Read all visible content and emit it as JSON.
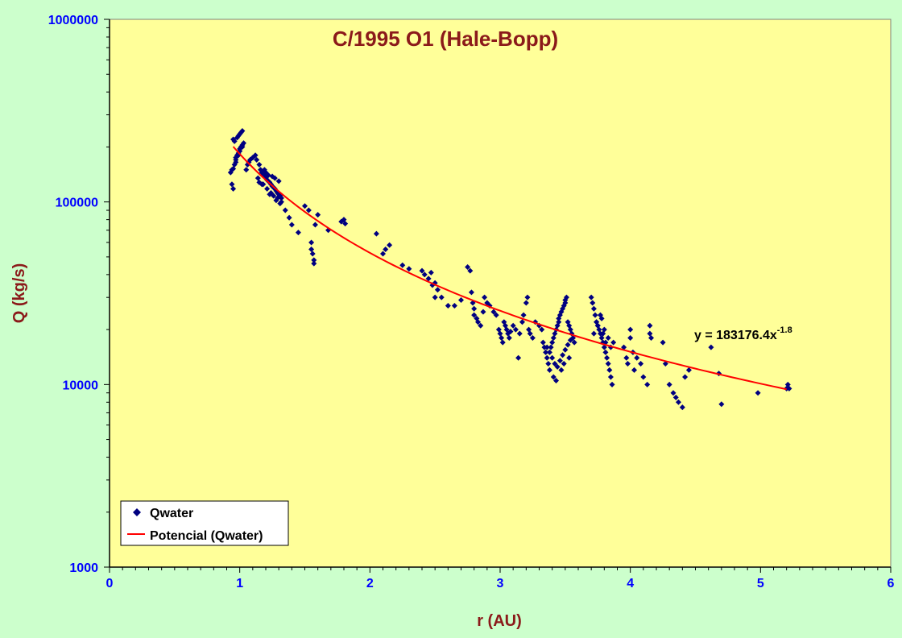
{
  "colors": {
    "page_bg": "#ccffcc",
    "plot_bg": "#ffff99",
    "title": "#8b1a1a",
    "tick_labels": "#0000ff",
    "points": "#000080",
    "trend": "#ff0000"
  },
  "chart_data": {
    "type": "scatter",
    "title": "C/1995 O1 (Hale-Bopp)",
    "xlabel": "r (AU)",
    "ylabel": "Q (kg/s)",
    "xlim": [
      0,
      6
    ],
    "ylim": [
      1000,
      1000000
    ],
    "yscale": "log",
    "x_ticks": [
      "0",
      "1",
      "2",
      "3",
      "4",
      "5",
      "6"
    ],
    "y_ticks": [
      "1000",
      "10000",
      "100000",
      "1000000"
    ],
    "grid": false,
    "legend_position": "bottom-left",
    "legend": [
      "Qwater",
      "Potencial (Qwater)"
    ],
    "trendline": {
      "equation_prefix": "y = 183176.4x",
      "equation_exponent": "-1.8",
      "coefficient": 183176.4,
      "exponent": -1.8,
      "x_range": [
        0.95,
        5.2
      ]
    },
    "series": [
      {
        "name": "Qwater",
        "x": [
          0.93,
          0.94,
          0.95,
          0.96,
          0.97,
          0.97,
          0.98,
          0.99,
          1.0,
          1.0,
          1.01,
          1.02,
          1.03,
          0.95,
          0.96,
          0.98,
          0.99,
          1.0,
          1.01,
          1.02,
          0.94,
          0.95,
          0.97,
          0.99,
          1.0,
          1.02,
          1.05,
          1.06,
          1.07,
          1.08,
          1.1,
          1.12,
          1.13,
          1.15,
          1.16,
          1.17,
          1.18,
          1.19,
          1.2,
          1.21,
          1.22,
          1.23,
          1.24,
          1.25,
          1.26,
          1.27,
          1.28,
          1.29,
          1.3,
          1.31,
          1.32,
          1.19,
          1.2,
          1.22,
          1.25,
          1.27,
          1.3,
          1.15,
          1.18,
          1.21,
          1.24,
          1.26,
          1.29,
          1.32,
          1.14,
          1.17,
          1.23,
          1.28,
          1.31,
          1.35,
          1.38,
          1.4,
          1.45,
          1.5,
          1.53,
          1.55,
          1.55,
          1.56,
          1.57,
          1.57,
          1.58,
          1.6,
          1.68,
          1.78,
          1.8,
          1.81,
          2.05,
          2.1,
          2.12,
          2.15,
          2.25,
          2.3,
          2.4,
          2.42,
          2.45,
          2.47,
          2.48,
          2.5,
          2.5,
          2.52,
          2.55,
          2.6,
          2.65,
          2.7,
          2.75,
          2.77,
          2.78,
          2.79,
          2.8,
          2.8,
          2.82,
          2.83,
          2.85,
          2.87,
          2.88,
          2.9,
          2.92,
          2.95,
          2.97,
          2.99,
          3.0,
          3.01,
          3.02,
          3.03,
          3.04,
          3.05,
          3.06,
          3.07,
          3.08,
          3.1,
          3.12,
          3.14,
          3.15,
          3.17,
          3.18,
          3.2,
          3.21,
          3.22,
          3.23,
          3.25,
          3.27,
          3.3,
          3.32,
          3.33,
          3.34,
          3.35,
          3.36,
          3.37,
          3.38,
          3.39,
          3.4,
          3.41,
          3.42,
          3.43,
          3.44,
          3.45,
          3.45,
          3.46,
          3.47,
          3.48,
          3.49,
          3.5,
          3.5,
          3.51,
          3.52,
          3.53,
          3.54,
          3.55,
          3.56,
          3.57,
          3.36,
          3.38,
          3.4,
          3.42,
          3.44,
          3.46,
          3.48,
          3.5,
          3.52,
          3.54,
          3.41,
          3.43,
          3.47,
          3.49,
          3.53,
          3.7,
          3.71,
          3.72,
          3.73,
          3.74,
          3.75,
          3.76,
          3.77,
          3.78,
          3.79,
          3.8,
          3.81,
          3.82,
          3.83,
          3.84,
          3.85,
          3.86,
          3.87,
          3.72,
          3.75,
          3.78,
          3.8,
          3.83,
          3.85,
          3.74,
          3.77,
          3.79,
          3.81,
          3.95,
          3.97,
          3.98,
          4.0,
          4.0,
          4.02,
          4.03,
          4.05,
          4.08,
          4.1,
          4.13,
          4.15,
          4.15,
          4.16,
          4.25,
          4.27,
          4.3,
          4.33,
          4.35,
          4.37,
          4.4,
          4.42,
          4.45,
          4.62,
          4.68,
          4.7,
          4.98,
          5.2,
          5.21,
          5.22
        ],
        "y": [
          145000,
          150000,
          152000,
          160000,
          165000,
          175000,
          180000,
          185000,
          190000,
          195000,
          200000,
          205000,
          210000,
          220000,
          215000,
          225000,
          230000,
          235000,
          240000,
          245000,
          125000,
          118000,
          170000,
          180000,
          190000,
          200000,
          150000,
          160000,
          165000,
          170000,
          175000,
          180000,
          170000,
          160000,
          150000,
          145000,
          140000,
          138000,
          135000,
          132000,
          130000,
          128000,
          125000,
          122000,
          120000,
          118000,
          115000,
          112000,
          110000,
          108000,
          105000,
          150000,
          145000,
          140000,
          138000,
          135000,
          130000,
          128000,
          125000,
          118000,
          112000,
          108000,
          105000,
          100000,
          135000,
          125000,
          110000,
          102000,
          98000,
          90000,
          82000,
          75000,
          68000,
          95000,
          90000,
          60000,
          55000,
          52000,
          48000,
          46000,
          75000,
          85000,
          70000,
          78000,
          80000,
          76000,
          67000,
          52000,
          55000,
          58000,
          45000,
          43000,
          42000,
          40000,
          38000,
          41000,
          35000,
          30000,
          36000,
          33000,
          30000,
          27000,
          27000,
          29000,
          44000,
          42000,
          32000,
          28000,
          26000,
          24000,
          23000,
          22000,
          21000,
          25000,
          30000,
          28000,
          27000,
          25000,
          24000,
          20000,
          19000,
          18000,
          17000,
          22000,
          21000,
          20000,
          19000,
          18000,
          19500,
          21000,
          20000,
          14000,
          19000,
          22000,
          24000,
          28000,
          30000,
          20000,
          19000,
          18000,
          22000,
          21000,
          20000,
          17000,
          16000,
          15000,
          14000,
          13000,
          15000,
          16000,
          17000,
          18000,
          19000,
          20000,
          21000,
          22000,
          23000,
          24000,
          25000,
          26000,
          27000,
          28000,
          29000,
          30000,
          22000,
          21000,
          20000,
          19000,
          18000,
          17000,
          16000,
          12000,
          14000,
          13000,
          12500,
          13500,
          14500,
          15500,
          16500,
          17500,
          11000,
          10500,
          12000,
          13000,
          14000,
          30000,
          28000,
          26000,
          24000,
          22000,
          21000,
          20000,
          19000,
          18000,
          17000,
          16000,
          15000,
          14000,
          13000,
          12000,
          11000,
          10000,
          17000,
          19000,
          21000,
          23000,
          20000,
          18000,
          16000,
          22000,
          24000,
          19000,
          17000,
          16000,
          14000,
          13000,
          20000,
          18000,
          15000,
          12000,
          14000,
          13000,
          11000,
          10000,
          21000,
          19000,
          18000,
          17000,
          13000,
          10000,
          9000,
          8500,
          8000,
          7500,
          11000,
          12000,
          16000,
          11500,
          7800,
          9000,
          9500,
          10000,
          9500
        ]
      }
    ]
  }
}
